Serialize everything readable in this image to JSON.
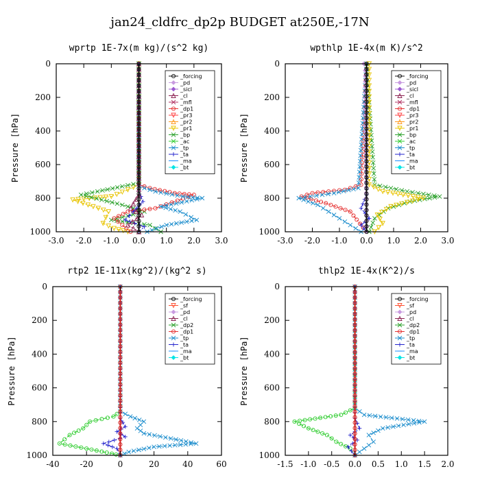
{
  "figure_title": "jan24_cldfrc_dp2p  BUDGET at250E,-17N",
  "chart_data": [
    {
      "type": "line",
      "title": "wprtp  1E-7x(m kg)/(s^2 kg)",
      "ylabel": "Pressure [hPa]",
      "xlim": [
        -3.0,
        3.0
      ],
      "ylim": [
        1000,
        0
      ],
      "xticks": [
        "-3.0",
        "-2.0",
        "-1.0",
        "0.0",
        "1.0",
        "2.0",
        "3.0"
      ],
      "xtick_values": [
        -3,
        -2,
        -1,
        0,
        1,
        2,
        3
      ],
      "yticks": [
        "0",
        "200",
        "400",
        "600",
        "800",
        "1000"
      ],
      "ytick_values": [
        0,
        200,
        400,
        600,
        800,
        1000
      ],
      "legend": [
        "_forcing",
        "_pd",
        "_sicl",
        "_cl",
        "_mfl",
        "_dp1",
        "_pr3",
        "_pr2",
        "_pr1",
        "_bp",
        "_ac",
        "_tp",
        "_ta",
        "_ma",
        "_bt"
      ],
      "series": [
        {
          "name": "_pr1",
          "color": "#e8c400",
          "x": [
            0,
            0,
            -0.4,
            -1.0,
            -2.4,
            -1.1,
            -1.3,
            -0.9,
            -0.4
          ],
          "y": [
            0,
            720,
            750,
            790,
            810,
            880,
            950,
            980,
            1000
          ]
        },
        {
          "name": "_bp",
          "color": "#2aa02a",
          "x": [
            0,
            0,
            -0.6,
            -1.5,
            -2.1,
            -0.6,
            0.2,
            -1.0,
            0.4,
            0.8
          ],
          "y": [
            0,
            710,
            730,
            760,
            780,
            840,
            880,
            930,
            960,
            1000
          ]
        },
        {
          "name": "_dp1",
          "color": "#e53030",
          "x": [
            0,
            0,
            0.4,
            1.3,
            2.0,
            0.6,
            -0.4,
            -0.9,
            -0.3
          ],
          "y": [
            0,
            720,
            740,
            770,
            780,
            860,
            880,
            920,
            1000
          ]
        },
        {
          "name": "_tp",
          "color": "#1a8ccc",
          "x": [
            0,
            0,
            0.6,
            1.6,
            2.3,
            0.8,
            1.5,
            2.1,
            1.0,
            0.3
          ],
          "y": [
            0,
            730,
            760,
            790,
            800,
            850,
            880,
            930,
            960,
            1000
          ]
        },
        {
          "name": "_ta",
          "color": "#2222cc",
          "x": [
            0,
            0,
            0.15,
            -0.2,
            -0.5,
            0.2,
            0
          ],
          "y": [
            0,
            760,
            820,
            880,
            930,
            970,
            1000
          ]
        },
        {
          "name": "_cl",
          "color": "#8b2252",
          "x": [
            0,
            0,
            -0.3,
            0.1,
            -0.4,
            0
          ],
          "y": [
            0,
            780,
            860,
            900,
            960,
            1000
          ]
        },
        {
          "name": "_forcing",
          "color": "#111111",
          "x": [
            0,
            0
          ],
          "y": [
            0,
            1000
          ]
        }
      ]
    },
    {
      "type": "line",
      "title": "wpthlp  1E-4x(m K)/s^2",
      "ylabel": "Pressure [hPa]",
      "xlim": [
        -3.0,
        3.0
      ],
      "ylim": [
        1000,
        0
      ],
      "xticks": [
        "-3.0",
        "-2.0",
        "-1.0",
        "0.0",
        "1.0",
        "2.0",
        "3.0"
      ],
      "xtick_values": [
        -3,
        -2,
        -1,
        0,
        1,
        2,
        3
      ],
      "yticks": [
        "0",
        "200",
        "400",
        "600",
        "800",
        "1000"
      ],
      "ytick_values": [
        0,
        200,
        400,
        600,
        800,
        1000
      ],
      "legend": [
        "_forcing",
        "_pd",
        "_sicl",
        "_cl",
        "_mfl",
        "_dp1",
        "_pr3",
        "_pr2",
        "_pr1",
        "_bp",
        "_ac",
        "_tp",
        "_ta",
        "_ma",
        "_bt"
      ],
      "series": [
        {
          "name": "_dp1",
          "color": "#e53030",
          "x": [
            0,
            -0.2,
            -0.8,
            -2.0,
            -2.4,
            -1.5,
            -0.6,
            0
          ],
          "y": [
            0,
            720,
            750,
            770,
            790,
            830,
            880,
            1000
          ]
        },
        {
          "name": "_tp",
          "color": "#1a8ccc",
          "x": [
            0,
            -0.3,
            -1.2,
            -2.5,
            -1.8,
            -1.2,
            -0.6,
            -0.2
          ],
          "y": [
            0,
            740,
            770,
            800,
            840,
            900,
            960,
            1000
          ]
        },
        {
          "name": "_bp",
          "color": "#2aa02a",
          "x": [
            0,
            0.3,
            1.5,
            2.7,
            1.6,
            0.8,
            0.3,
            0.1
          ],
          "y": [
            0,
            720,
            760,
            790,
            820,
            860,
            920,
            1000
          ]
        },
        {
          "name": "_pr1",
          "color": "#e8c400",
          "x": [
            0.1,
            0.1,
            0.6,
            2.1,
            0.9,
            0.4,
            0.6,
            0.3
          ],
          "y": [
            0,
            720,
            760,
            800,
            850,
            900,
            950,
            1000
          ]
        },
        {
          "name": "_ta",
          "color": "#2222cc",
          "x": [
            0,
            0,
            -0.2,
            0.1,
            -0.2,
            0
          ],
          "y": [
            0,
            780,
            860,
            920,
            960,
            1000
          ]
        },
        {
          "name": "_pd",
          "color": "#c89ae0",
          "x": [
            -0.1,
            -0.05,
            0
          ],
          "y": [
            0,
            40,
            1000
          ]
        },
        {
          "name": "_forcing",
          "color": "#111111",
          "x": [
            0,
            0
          ],
          "y": [
            0,
            1000
          ]
        }
      ]
    },
    {
      "type": "line",
      "title": "rtp2  1E-11x(kg^2)/(kg^2 s)",
      "ylabel": "Pressure [hPa]",
      "xlim": [
        -40,
        60
      ],
      "ylim": [
        1000,
        0
      ],
      "xticks": [
        "-40",
        "-20",
        "0",
        "20",
        "40",
        "60"
      ],
      "xtick_values": [
        -40,
        -20,
        0,
        20,
        40,
        60
      ],
      "yticks": [
        "0",
        "200",
        "400",
        "600",
        "800",
        "1000"
      ],
      "ytick_values": [
        0,
        200,
        400,
        600,
        800,
        1000
      ],
      "legend": [
        "_forcing",
        "_sf",
        "_pd",
        "_cl",
        "_dp2",
        "_dp1",
        "_tp",
        "_ta",
        "_ma",
        "_bt"
      ],
      "series": [
        {
          "name": "_dp1",
          "color": "#2ecc2e",
          "x": [
            0,
            0,
            -4,
            -18,
            -22,
            -30,
            -36,
            -20,
            -5,
            0
          ],
          "y": [
            0,
            740,
            770,
            800,
            840,
            880,
            930,
            960,
            990,
            1000
          ]
        },
        {
          "name": "_tp",
          "color": "#1a8ccc",
          "x": [
            0,
            0,
            6,
            14,
            10,
            14,
            30,
            45,
            20,
            5,
            0
          ],
          "y": [
            0,
            740,
            770,
            800,
            840,
            870,
            900,
            930,
            950,
            980,
            1000
          ]
        },
        {
          "name": "_ta",
          "color": "#2222cc",
          "x": [
            0,
            0,
            3,
            -2,
            3,
            -10,
            -2,
            0
          ],
          "y": [
            0,
            780,
            830,
            860,
            890,
            930,
            960,
            1000
          ]
        },
        {
          "name": "_forcing",
          "color": "#d22020",
          "x": [
            0,
            0
          ],
          "y": [
            0,
            1000
          ]
        }
      ]
    },
    {
      "type": "line",
      "title": "thlp2  1E-4x(K^2)/s",
      "ylabel": "Pressure [hPa]",
      "xlim": [
        -1.5,
        2.0
      ],
      "ylim": [
        1000,
        0
      ],
      "xticks": [
        "-1.5",
        "-1.0",
        "-0.5",
        "0.0",
        "0.5",
        "1.0",
        "1.5",
        "2.0"
      ],
      "xtick_values": [
        -1.5,
        -1.0,
        -0.5,
        0.0,
        0.5,
        1.0,
        1.5,
        2.0
      ],
      "yticks": [
        "0",
        "200",
        "400",
        "600",
        "800",
        "1000"
      ],
      "ytick_values": [
        0,
        200,
        400,
        600,
        800,
        1000
      ],
      "legend": [
        "_forcing",
        "_sf",
        "_pd",
        "_cl",
        "_dp2",
        "_dp1",
        "_tp",
        "_ta",
        "_ma",
        "_bt"
      ],
      "series": [
        {
          "name": "_dp1",
          "color": "#2ecc2e",
          "x": [
            0,
            0,
            -0.3,
            -1.3,
            -1.0,
            -0.6,
            -0.4,
            -0.1,
            0
          ],
          "y": [
            0,
            720,
            760,
            800,
            840,
            880,
            920,
            960,
            1000
          ]
        },
        {
          "name": "_tp",
          "color": "#1a8ccc",
          "x": [
            0,
            0,
            0.2,
            1.5,
            0.6,
            0.3,
            0.4,
            0.2,
            0
          ],
          "y": [
            0,
            720,
            760,
            800,
            840,
            880,
            920,
            960,
            1000
          ]
        },
        {
          "name": "_ta",
          "color": "#2222cc",
          "x": [
            0,
            0,
            0.1,
            -0.1,
            0.05,
            -0.15,
            0
          ],
          "y": [
            0,
            780,
            840,
            880,
            910,
            950,
            1000
          ]
        },
        {
          "name": "_forcing",
          "color": "#d22020",
          "x": [
            0,
            0
          ],
          "y": [
            0,
            1000
          ]
        }
      ]
    }
  ]
}
